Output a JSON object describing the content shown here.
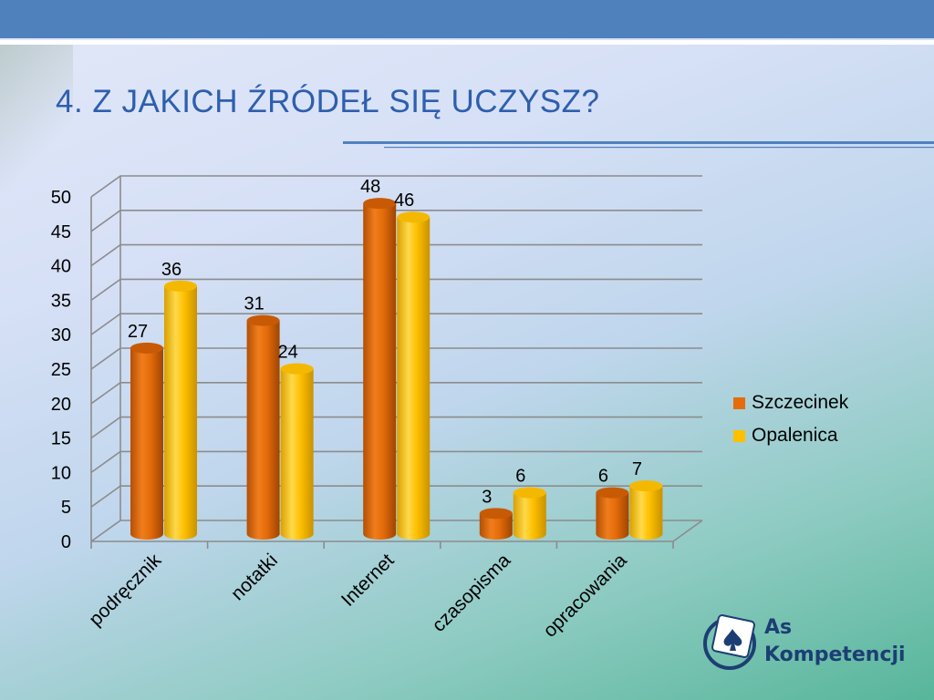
{
  "slide": {
    "title": "4. Z JAKICH ŹRÓDEŁ SIĘ UCZYSZ?"
  },
  "logo": {
    "line1": "As",
    "line2": "Kompetencji"
  },
  "colors": {
    "title": "#2e5fae",
    "series1": "#e56c0a",
    "series2": "#ffc000",
    "accent": "#4f81bd"
  },
  "chart_data": {
    "type": "bar",
    "style": "3d-cylinder",
    "categories": [
      "podręcznik",
      "notatki",
      "Internet",
      "czasopisma",
      "opracowania"
    ],
    "series": [
      {
        "name": "Szczecinek",
        "values": [
          27,
          31,
          48,
          3,
          6
        ],
        "color": "#e56c0a"
      },
      {
        "name": "Opalenica",
        "values": [
          36,
          24,
          46,
          6,
          7
        ],
        "color": "#ffc000"
      }
    ],
    "ylim": [
      0,
      50
    ],
    "yticks": [
      0,
      5,
      10,
      15,
      20,
      25,
      30,
      35,
      40,
      45,
      50
    ],
    "grid": true,
    "legend": "right",
    "xlabel_rotation": -45
  }
}
